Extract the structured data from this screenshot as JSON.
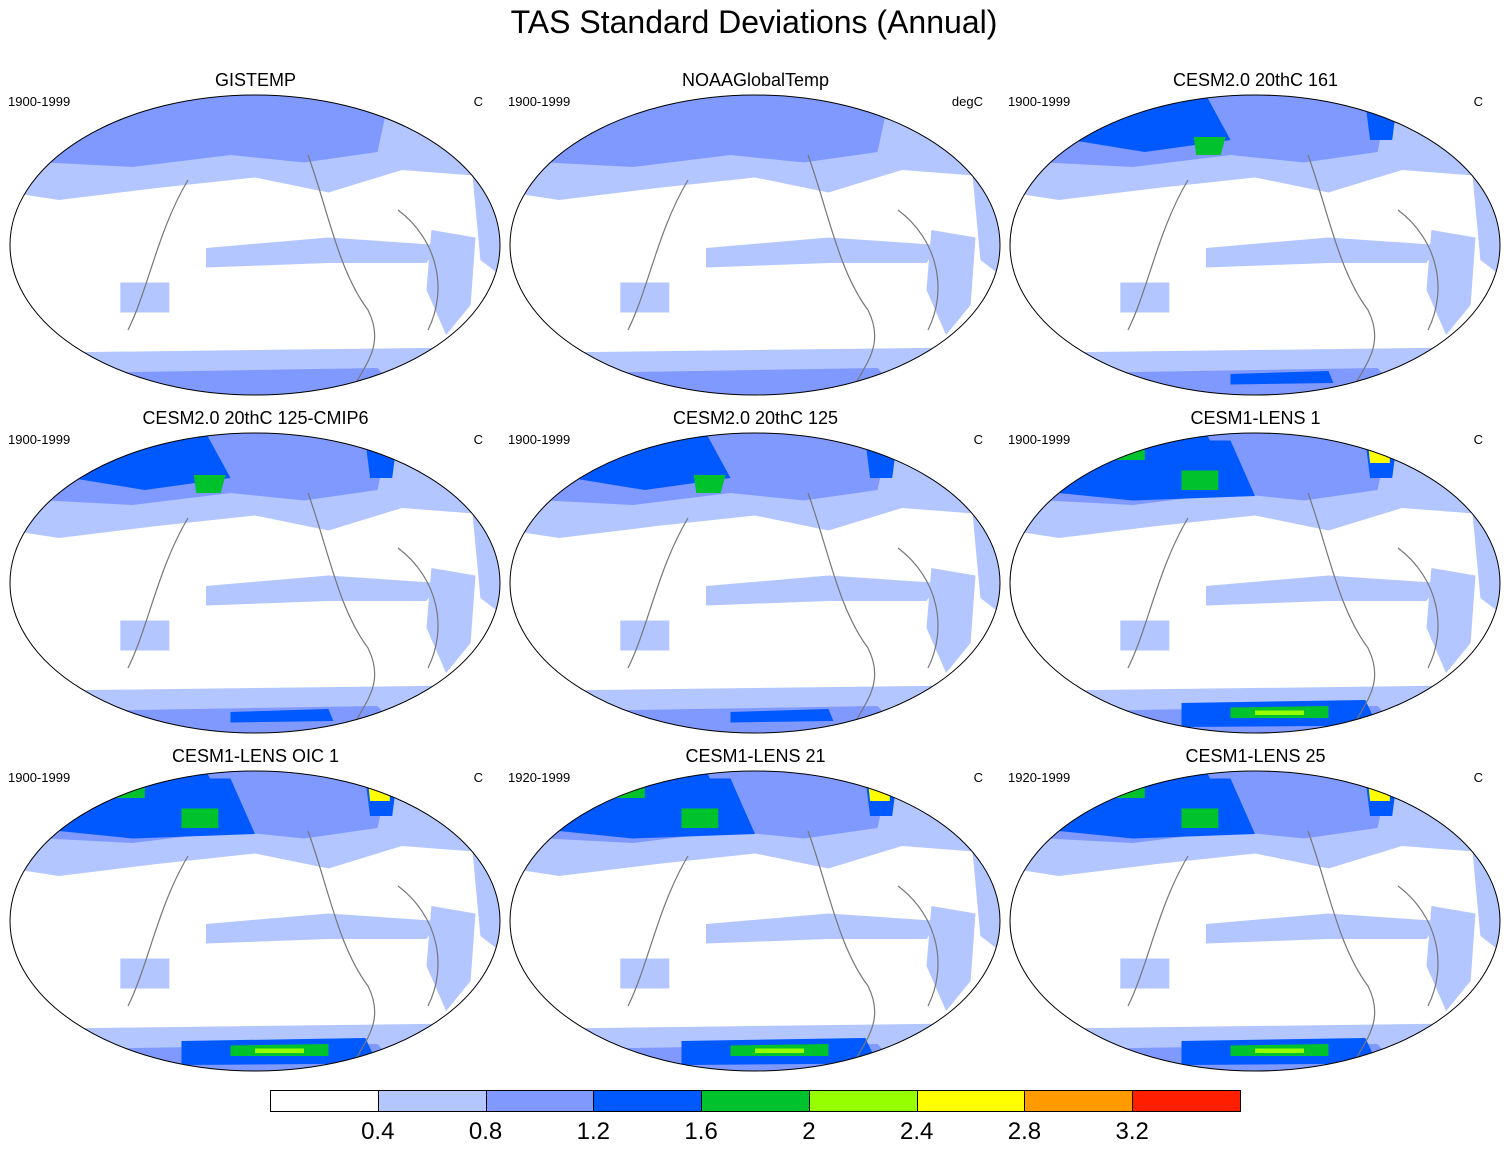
{
  "title": "TAS Standard Deviations (Annual)",
  "panels": [
    {
      "title": "GISTEMP",
      "period": "1900-1999",
      "units": "C",
      "level": 0
    },
    {
      "title": "NOAAGlobalTemp",
      "period": "1900-1999",
      "units": "degC",
      "level": 0
    },
    {
      "title": "CESM2.0 20thC 161",
      "period": "1900-1999",
      "units": "C",
      "level": 1
    },
    {
      "title": "CESM2.0 20thC 125-CMIP6",
      "period": "1900-1999",
      "units": "C",
      "level": 1
    },
    {
      "title": "CESM2.0 20thC 125",
      "period": "1900-1999",
      "units": "C",
      "level": 1
    },
    {
      "title": "CESM1-LENS 1",
      "period": "1900-1999",
      "units": "C",
      "level": 2
    },
    {
      "title": "CESM1-LENS OIC 1",
      "period": "1900-1999",
      "units": "C",
      "level": 2
    },
    {
      "title": "CESM1-LENS 21",
      "period": "1920-1999",
      "units": "C",
      "level": 2
    },
    {
      "title": "CESM1-LENS 25",
      "period": "1920-1999",
      "units": "C",
      "level": 2
    }
  ],
  "colorbar": {
    "colors": [
      "#ffffff",
      "#b3c6ff",
      "#8099ff",
      "#0059ff",
      "#00c22c",
      "#96ff00",
      "#ffff00",
      "#ff9a00",
      "#ff1f00"
    ],
    "labels": [
      "0.4",
      "0.8",
      "1.2",
      "1.6",
      "2",
      "2.4",
      "2.8",
      "3.2"
    ]
  }
}
